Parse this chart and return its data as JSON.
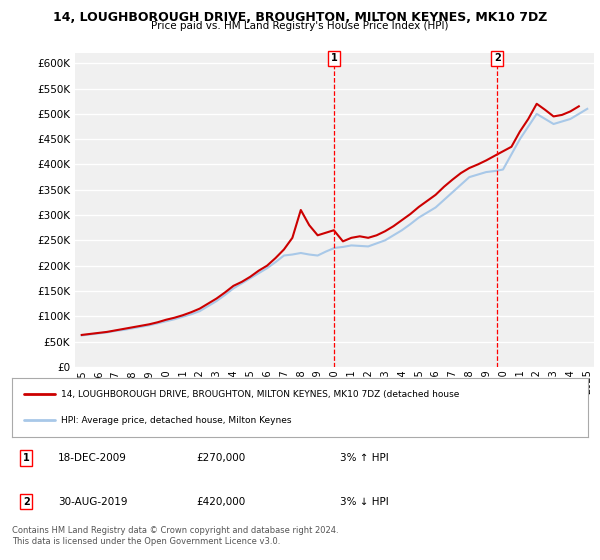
{
  "title": "14, LOUGHBOROUGH DRIVE, BROUGHTON, MILTON KEYNES, MK10 7DZ",
  "subtitle": "Price paid vs. HM Land Registry's House Price Index (HPI)",
  "ylim": [
    0,
    620000
  ],
  "yticks": [
    0,
    50000,
    100000,
    150000,
    200000,
    250000,
    300000,
    350000,
    400000,
    450000,
    500000,
    550000,
    600000
  ],
  "bg_color": "#ffffff",
  "plot_bg_color": "#f0f0f0",
  "grid_color": "#ffffff",
  "hpi_color": "#a8c8e8",
  "price_color": "#cc0000",
  "marker1_year": 2009.96,
  "marker1_value": 270000,
  "marker2_year": 2019.66,
  "marker2_value": 420000,
  "legend_label1": "14, LOUGHBOROUGH DRIVE, BROUGHTON, MILTON KEYNES, MK10 7DZ (detached house",
  "legend_label2": "HPI: Average price, detached house, Milton Keynes",
  "annotation1_date": "18-DEC-2009",
  "annotation1_price": "£270,000",
  "annotation1_hpi": "3% ↑ HPI",
  "annotation2_date": "30-AUG-2019",
  "annotation2_price": "£420,000",
  "annotation2_hpi": "3% ↓ HPI",
  "footer": "Contains HM Land Registry data © Crown copyright and database right 2024.\nThis data is licensed under the Open Government Licence v3.0.",
  "hpi_x": [
    1995.0,
    1995.5,
    1996.0,
    1996.5,
    1997.0,
    1997.5,
    1998.0,
    1998.5,
    1999.0,
    1999.5,
    2000.0,
    2000.5,
    2001.0,
    2001.5,
    2002.0,
    2002.5,
    2003.0,
    2003.5,
    2004.0,
    2004.5,
    2005.0,
    2005.5,
    2006.0,
    2006.5,
    2007.0,
    2007.5,
    2008.0,
    2008.5,
    2009.0,
    2009.5,
    2010.0,
    2010.5,
    2011.0,
    2011.5,
    2012.0,
    2012.5,
    2013.0,
    2013.5,
    2014.0,
    2014.5,
    2015.0,
    2015.5,
    2016.0,
    2016.5,
    2017.0,
    2017.5,
    2018.0,
    2018.5,
    2019.0,
    2019.5,
    2020.0,
    2020.5,
    2021.0,
    2021.5,
    2022.0,
    2022.5,
    2023.0,
    2023.5,
    2024.0,
    2024.5,
    2025.0
  ],
  "hpi_y": [
    62000,
    64000,
    66000,
    68000,
    71000,
    73000,
    76000,
    79000,
    82000,
    86000,
    90000,
    94000,
    99000,
    104000,
    110000,
    120000,
    130000,
    142000,
    155000,
    165000,
    175000,
    185000,
    195000,
    207000,
    220000,
    222000,
    225000,
    222000,
    220000,
    228000,
    235000,
    237000,
    240000,
    239000,
    238000,
    244000,
    250000,
    260000,
    270000,
    282000,
    295000,
    305000,
    315000,
    330000,
    345000,
    360000,
    375000,
    380000,
    385000,
    387000,
    390000,
    420000,
    450000,
    475000,
    500000,
    490000,
    480000,
    485000,
    490000,
    500000,
    510000
  ],
  "price_x": [
    1995.0,
    1995.5,
    1996.0,
    1996.5,
    1997.0,
    1997.5,
    1998.0,
    1998.5,
    1999.0,
    1999.5,
    2000.0,
    2000.5,
    2001.0,
    2001.5,
    2002.0,
    2002.5,
    2003.0,
    2003.5,
    2004.0,
    2004.5,
    2005.0,
    2005.5,
    2006.0,
    2006.5,
    2007.0,
    2007.5,
    2008.0,
    2008.5,
    2009.0,
    2009.96,
    2010.5,
    2011.0,
    2011.5,
    2012.0,
    2012.5,
    2013.0,
    2013.5,
    2014.0,
    2014.5,
    2015.0,
    2015.5,
    2016.0,
    2016.5,
    2017.0,
    2017.5,
    2018.0,
    2018.5,
    2019.0,
    2019.66,
    2020.5,
    2021.0,
    2021.5,
    2022.0,
    2022.5,
    2023.0,
    2023.5,
    2024.0,
    2024.5
  ],
  "price_y": [
    63000,
    65000,
    67000,
    69000,
    72000,
    75000,
    78000,
    81000,
    84000,
    88000,
    93000,
    97000,
    102000,
    108000,
    115000,
    125000,
    135000,
    147000,
    160000,
    168000,
    178000,
    190000,
    200000,
    215000,
    232000,
    255000,
    310000,
    280000,
    260000,
    270000,
    248000,
    255000,
    258000,
    255000,
    260000,
    268000,
    278000,
    290000,
    302000,
    316000,
    328000,
    340000,
    356000,
    370000,
    383000,
    393000,
    400000,
    408000,
    420000,
    435000,
    465000,
    490000,
    520000,
    508000,
    495000,
    498000,
    505000,
    515000
  ]
}
